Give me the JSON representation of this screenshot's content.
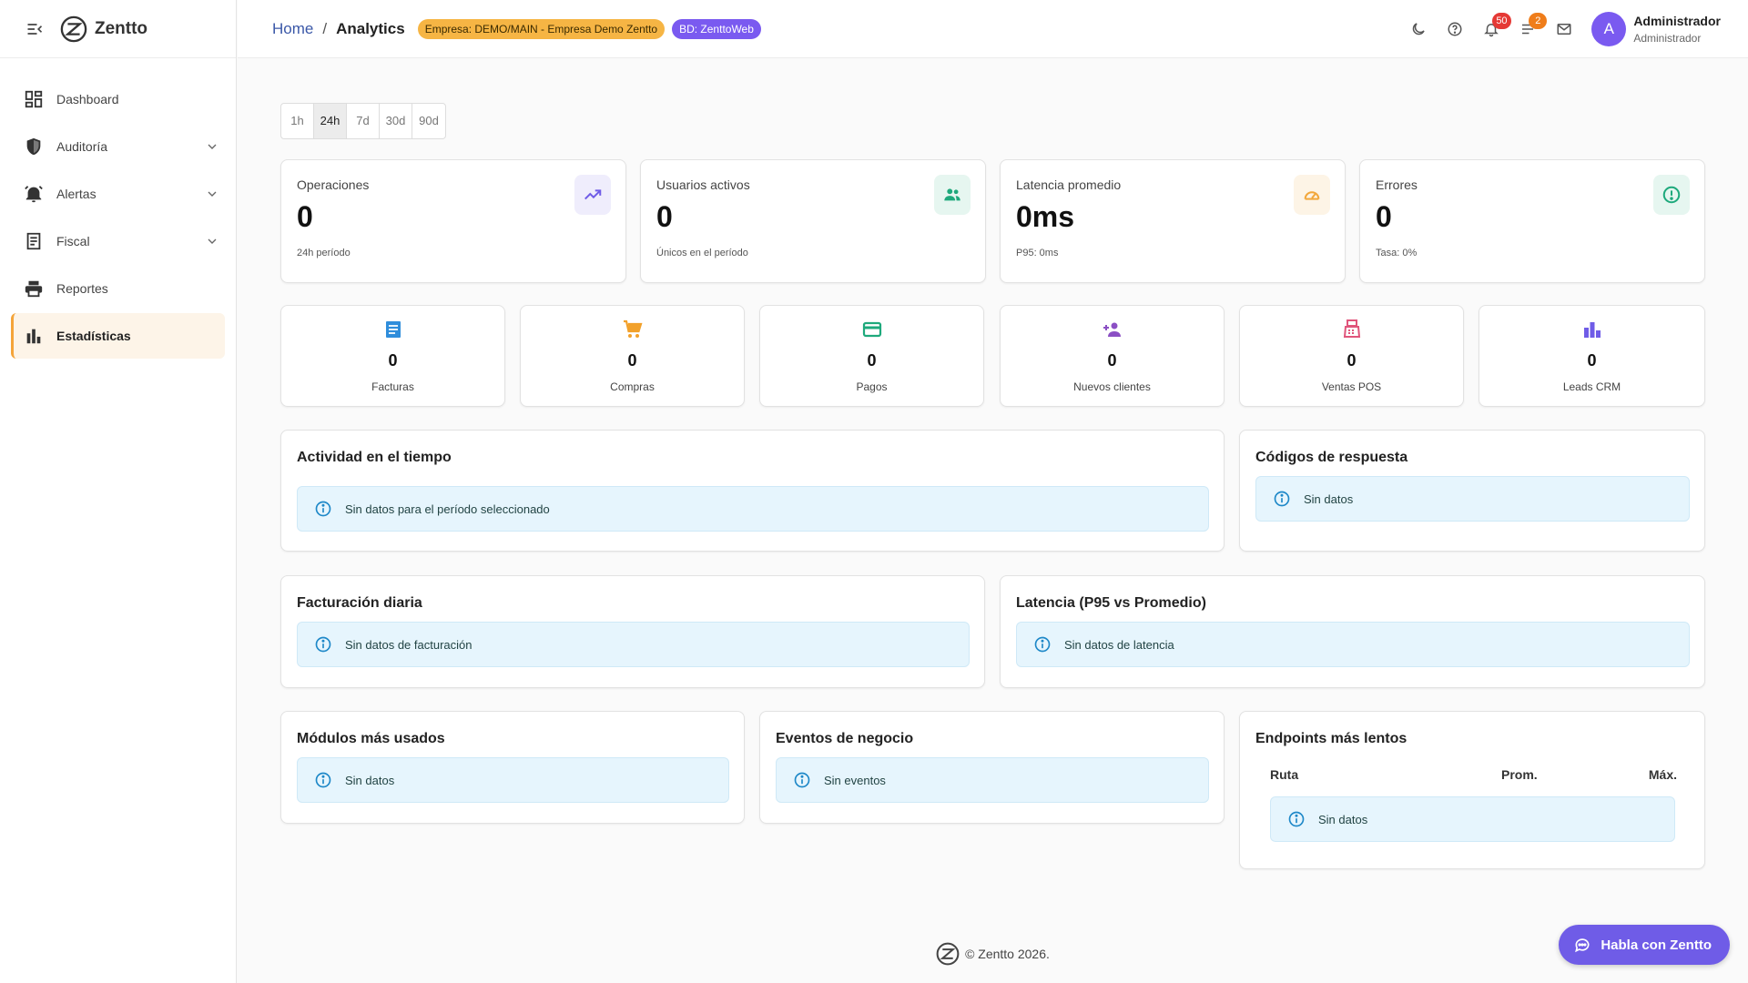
{
  "brand": {
    "name": "Zentto"
  },
  "sidebar": {
    "items": [
      {
        "label": "Dashboard",
        "icon": "dashboard-icon"
      },
      {
        "label": "Auditoría",
        "icon": "shield-icon"
      },
      {
        "label": "Alertas",
        "icon": "alarm-icon"
      },
      {
        "label": "Fiscal",
        "icon": "receipt-icon"
      },
      {
        "label": "Reportes",
        "icon": "printer-icon"
      },
      {
        "label": "Estadísticas",
        "icon": "bar-chart-icon"
      }
    ]
  },
  "header": {
    "breadcrumb_home": "Home",
    "breadcrumb_sep": "/",
    "breadcrumb_current": "Analytics",
    "chip_empresa": "Empresa: DEMO/MAIN - Empresa Demo Zentto",
    "chip_bd": "BD: ZenttoWeb",
    "notifications_count": "50",
    "tasks_count": "2",
    "avatar_letter": "A",
    "user_name": "Administrador",
    "user_role": "Administrador"
  },
  "period": {
    "options": [
      "1h",
      "24h",
      "7d",
      "30d",
      "90d"
    ],
    "selected": "24h"
  },
  "kpis": [
    {
      "label": "Operaciones",
      "value": "0",
      "sub": "24h período",
      "icon": "trending-up-icon",
      "color": "#6f5ce7",
      "bg": "#efedfc"
    },
    {
      "label": "Usuarios activos",
      "value": "0",
      "sub": "Únicos en el período",
      "icon": "people-icon",
      "color": "#1ea97c",
      "bg": "#e6f6f0"
    },
    {
      "label": "Latencia promedio",
      "value": "0ms",
      "sub": "P95: 0ms",
      "icon": "speed-icon",
      "color": "#f2a73b",
      "bg": "#fdf4e6"
    },
    {
      "label": "Errores",
      "value": "0",
      "sub": "Tasa: 0%",
      "icon": "error-icon",
      "color": "#1ea97c",
      "bg": "#e6f6f0"
    }
  ],
  "minis": [
    {
      "value": "0",
      "label": "Facturas",
      "icon": "invoice-icon",
      "color": "#2f8ddb"
    },
    {
      "value": "0",
      "label": "Compras",
      "icon": "cart-icon",
      "color": "#f2a12b"
    },
    {
      "value": "0",
      "label": "Pagos",
      "icon": "credit-card-icon",
      "color": "#1ea97c"
    },
    {
      "value": "0",
      "label": "Nuevos clientes",
      "icon": "person-add-icon",
      "color": "#8b4fc4"
    },
    {
      "value": "0",
      "label": "Ventas POS",
      "icon": "pos-icon",
      "color": "#e0557b"
    },
    {
      "value": "0",
      "label": "Leads CRM",
      "icon": "leaderboard-icon",
      "color": "#6f5ce7"
    }
  ],
  "panels": {
    "actividad": {
      "title": "Actividad en el tiempo",
      "message": "Sin datos para el período seleccionado"
    },
    "codigos": {
      "title": "Códigos de respuesta",
      "message": "Sin datos"
    },
    "facturacion": {
      "title": "Facturación diaria",
      "message": "Sin datos de facturación"
    },
    "latencia": {
      "title": "Latencia (P95 vs Promedio)",
      "message": "Sin datos de latencia"
    },
    "modulos": {
      "title": "Módulos más usados",
      "message": "Sin datos"
    },
    "eventos": {
      "title": "Eventos de negocio",
      "message": "Sin eventos"
    },
    "endpoints": {
      "title": "Endpoints más lentos",
      "columns": [
        "Ruta",
        "Prom.",
        "Máx."
      ],
      "message": "Sin datos"
    }
  },
  "footer": {
    "text": "© Zentto 2026."
  },
  "chat": {
    "label": "Habla con Zentto"
  }
}
